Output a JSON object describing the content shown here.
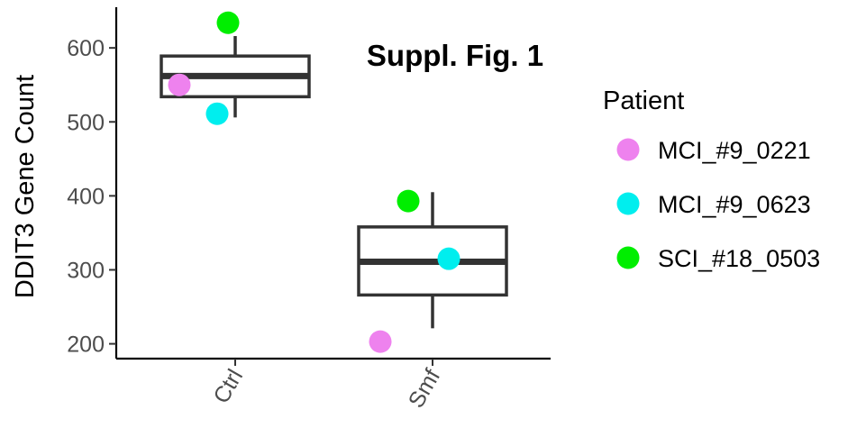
{
  "chart_data": {
    "type": "boxplot",
    "title": "Suppl. Fig. 1",
    "xlabel": "",
    "ylabel": "DDIT3 Gene Count",
    "categories": [
      "Ctrl",
      "Smf"
    ],
    "ylim": [
      180,
      655
    ],
    "yticks": [
      200,
      300,
      400,
      500,
      600
    ],
    "grid": false,
    "legend": {
      "title": "Patient",
      "position": "right"
    },
    "boxes": [
      {
        "category": "Ctrl",
        "whisker_low": 506,
        "q1": 534,
        "median": 562,
        "q3": 589,
        "whisker_high": 616
      },
      {
        "category": "Smf",
        "whisker_low": 221,
        "q1": 266,
        "median": 311,
        "q3": 358,
        "whisker_high": 405
      }
    ],
    "series": [
      {
        "name": "MCI_#9_0221",
        "color": "#EE82EE",
        "points": [
          {
            "x": "Ctrl",
            "y": 550
          },
          {
            "x": "Smf",
            "y": 203
          }
        ]
      },
      {
        "name": "MCI_#9_0623",
        "color": "#00EEEE",
        "points": [
          {
            "x": "Ctrl",
            "y": 511
          },
          {
            "x": "Smf",
            "y": 315
          }
        ]
      },
      {
        "name": "SCI_#18_0503",
        "color": "#00EE00",
        "points": [
          {
            "x": "Ctrl",
            "y": 634
          },
          {
            "x": "Smf",
            "y": 393
          }
        ]
      }
    ]
  }
}
